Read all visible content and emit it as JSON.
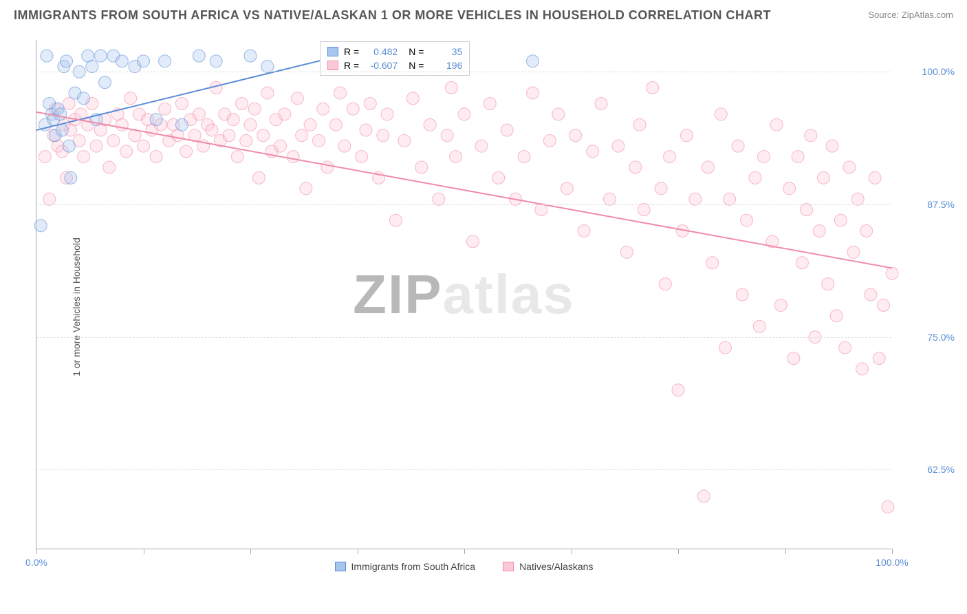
{
  "title": "IMMIGRANTS FROM SOUTH AFRICA VS NATIVE/ALASKAN 1 OR MORE VEHICLES IN HOUSEHOLD CORRELATION CHART",
  "source": "Source: ZipAtlas.com",
  "y_axis_label": "1 or more Vehicles in Household",
  "watermark": {
    "part1": "ZIP",
    "part2": "atlas"
  },
  "chart": {
    "type": "scatter",
    "xlim": [
      0,
      100
    ],
    "ylim": [
      55,
      103
    ],
    "y_ticks": [
      62.5,
      75.0,
      87.5,
      100.0
    ],
    "y_tick_labels": [
      "62.5%",
      "75.0%",
      "87.5%",
      "100.0%"
    ],
    "x_ticks": [
      0,
      12.5,
      25,
      37.5,
      50,
      62.5,
      75,
      87.5,
      100
    ],
    "x_tick_labels": {
      "0": "0.0%",
      "100": "100.0%"
    },
    "grid_color": "#dddddd",
    "axis_color": "#aaaaaa",
    "background_color": "#ffffff",
    "marker_radius": 9,
    "marker_opacity": 0.35,
    "line_width": 2,
    "series": [
      {
        "name": "Immigrants from South Africa",
        "color": "#5b8dd6",
        "fill": "#a8c5ed",
        "R": "0.482",
        "N": "35",
        "trend": {
          "x1": 0,
          "y1": 94.5,
          "x2": 38,
          "y2": 102.0
        },
        "points": [
          [
            0.5,
            85.5
          ],
          [
            1.0,
            95.0
          ],
          [
            1.2,
            101.5
          ],
          [
            1.5,
            97.0
          ],
          [
            1.8,
            96.0
          ],
          [
            2.0,
            95.5
          ],
          [
            2.2,
            94.0
          ],
          [
            2.5,
            96.5
          ],
          [
            2.8,
            96.0
          ],
          [
            3.0,
            94.5
          ],
          [
            3.2,
            100.5
          ],
          [
            3.5,
            101.0
          ],
          [
            3.8,
            93.0
          ],
          [
            4.0,
            90.0
          ],
          [
            4.5,
            98.0
          ],
          [
            5.0,
            100.0
          ],
          [
            5.5,
            97.5
          ],
          [
            6.0,
            101.5
          ],
          [
            6.5,
            100.5
          ],
          [
            7.0,
            95.5
          ],
          [
            7.5,
            101.5
          ],
          [
            8.0,
            99.0
          ],
          [
            9.0,
            101.5
          ],
          [
            10.0,
            101.0
          ],
          [
            11.5,
            100.5
          ],
          [
            12.5,
            101.0
          ],
          [
            14.0,
            95.5
          ],
          [
            15.0,
            101.0
          ],
          [
            17.0,
            95.0
          ],
          [
            19.0,
            101.5
          ],
          [
            21.0,
            101.0
          ],
          [
            25.0,
            101.5
          ],
          [
            27.0,
            100.5
          ],
          [
            37.0,
            101.5
          ],
          [
            58.0,
            101.0
          ]
        ]
      },
      {
        "name": "Natives/Alaskans",
        "color": "#f08ca8",
        "fill": "#fbc9d6",
        "R": "-0.607",
        "N": "196",
        "trend": {
          "x1": 0,
          "y1": 96.2,
          "x2": 100,
          "y2": 81.5
        },
        "points": [
          [
            1.0,
            92.0
          ],
          [
            1.5,
            88.0
          ],
          [
            2.0,
            94.0
          ],
          [
            2.2,
            96.5
          ],
          [
            2.5,
            93.0
          ],
          [
            3.0,
            92.5
          ],
          [
            3.2,
            95.0
          ],
          [
            3.5,
            90.0
          ],
          [
            3.8,
            97.0
          ],
          [
            4.0,
            94.5
          ],
          [
            4.5,
            95.5
          ],
          [
            5.0,
            93.5
          ],
          [
            5.2,
            96.0
          ],
          [
            5.5,
            92.0
          ],
          [
            6.0,
            95.0
          ],
          [
            6.5,
            97.0
          ],
          [
            7.0,
            93.0
          ],
          [
            7.5,
            94.5
          ],
          [
            8.0,
            95.5
          ],
          [
            8.5,
            91.0
          ],
          [
            9.0,
            93.5
          ],
          [
            9.5,
            96.0
          ],
          [
            10.0,
            95.0
          ],
          [
            10.5,
            92.5
          ],
          [
            11.0,
            97.5
          ],
          [
            11.5,
            94.0
          ],
          [
            12.0,
            96.0
          ],
          [
            12.5,
            93.0
          ],
          [
            13.0,
            95.5
          ],
          [
            13.5,
            94.5
          ],
          [
            14.0,
            92.0
          ],
          [
            14.5,
            95.0
          ],
          [
            15.0,
            96.5
          ],
          [
            15.5,
            93.5
          ],
          [
            16.0,
            95.0
          ],
          [
            16.5,
            94.0
          ],
          [
            17.0,
            97.0
          ],
          [
            17.5,
            92.5
          ],
          [
            18.0,
            95.5
          ],
          [
            18.5,
            94.0
          ],
          [
            19.0,
            96.0
          ],
          [
            19.5,
            93.0
          ],
          [
            20.0,
            95.0
          ],
          [
            20.5,
            94.5
          ],
          [
            21.0,
            98.5
          ],
          [
            21.5,
            93.5
          ],
          [
            22.0,
            96.0
          ],
          [
            22.5,
            94.0
          ],
          [
            23.0,
            95.5
          ],
          [
            23.5,
            92.0
          ],
          [
            24.0,
            97.0
          ],
          [
            24.5,
            93.5
          ],
          [
            25.0,
            95.0
          ],
          [
            25.5,
            96.5
          ],
          [
            26.0,
            90.0
          ],
          [
            26.5,
            94.0
          ],
          [
            27.0,
            98.0
          ],
          [
            27.5,
            92.5
          ],
          [
            28.0,
            95.5
          ],
          [
            28.5,
            93.0
          ],
          [
            29.0,
            96.0
          ],
          [
            30.0,
            92.0
          ],
          [
            30.5,
            97.5
          ],
          [
            31.0,
            94.0
          ],
          [
            31.5,
            89.0
          ],
          [
            32.0,
            95.0
          ],
          [
            33.0,
            93.5
          ],
          [
            33.5,
            96.5
          ],
          [
            34.0,
            91.0
          ],
          [
            35.0,
            95.0
          ],
          [
            35.5,
            98.0
          ],
          [
            36.0,
            93.0
          ],
          [
            37.0,
            96.5
          ],
          [
            38.0,
            92.0
          ],
          [
            38.5,
            94.5
          ],
          [
            39.0,
            97.0
          ],
          [
            40.0,
            90.0
          ],
          [
            40.5,
            94.0
          ],
          [
            41.0,
            96.0
          ],
          [
            42.0,
            86.0
          ],
          [
            43.0,
            93.5
          ],
          [
            44.0,
            97.5
          ],
          [
            45.0,
            91.0
          ],
          [
            46.0,
            95.0
          ],
          [
            47.0,
            88.0
          ],
          [
            48.0,
            94.0
          ],
          [
            48.5,
            98.5
          ],
          [
            49.0,
            92.0
          ],
          [
            50.0,
            96.0
          ],
          [
            51.0,
            84.0
          ],
          [
            52.0,
            93.0
          ],
          [
            53.0,
            97.0
          ],
          [
            54.0,
            90.0
          ],
          [
            55.0,
            94.5
          ],
          [
            56.0,
            88.0
          ],
          [
            57.0,
            92.0
          ],
          [
            58.0,
            98.0
          ],
          [
            59.0,
            87.0
          ],
          [
            60.0,
            93.5
          ],
          [
            61.0,
            96.0
          ],
          [
            62.0,
            89.0
          ],
          [
            63.0,
            94.0
          ],
          [
            64.0,
            85.0
          ],
          [
            65.0,
            92.5
          ],
          [
            66.0,
            97.0
          ],
          [
            67.0,
            88.0
          ],
          [
            68.0,
            93.0
          ],
          [
            69.0,
            83.0
          ],
          [
            70.0,
            91.0
          ],
          [
            70.5,
            95.0
          ],
          [
            71.0,
            87.0
          ],
          [
            72.0,
            98.5
          ],
          [
            73.0,
            89.0
          ],
          [
            73.5,
            80.0
          ],
          [
            74.0,
            92.0
          ],
          [
            75.0,
            70.0
          ],
          [
            75.5,
            85.0
          ],
          [
            76.0,
            94.0
          ],
          [
            77.0,
            88.0
          ],
          [
            78.0,
            60.0
          ],
          [
            78.5,
            91.0
          ],
          [
            79.0,
            82.0
          ],
          [
            80.0,
            96.0
          ],
          [
            80.5,
            74.0
          ],
          [
            81.0,
            88.0
          ],
          [
            82.0,
            93.0
          ],
          [
            82.5,
            79.0
          ],
          [
            83.0,
            86.0
          ],
          [
            84.0,
            90.0
          ],
          [
            84.5,
            76.0
          ],
          [
            85.0,
            92.0
          ],
          [
            86.0,
            84.0
          ],
          [
            86.5,
            95.0
          ],
          [
            87.0,
            78.0
          ],
          [
            88.0,
            89.0
          ],
          [
            88.5,
            73.0
          ],
          [
            89.0,
            92.0
          ],
          [
            89.5,
            82.0
          ],
          [
            90.0,
            87.0
          ],
          [
            90.5,
            94.0
          ],
          [
            91.0,
            75.0
          ],
          [
            91.5,
            85.0
          ],
          [
            92.0,
            90.0
          ],
          [
            92.5,
            80.0
          ],
          [
            93.0,
            93.0
          ],
          [
            93.5,
            77.0
          ],
          [
            94.0,
            86.0
          ],
          [
            94.5,
            74.0
          ],
          [
            95.0,
            91.0
          ],
          [
            95.5,
            83.0
          ],
          [
            96.0,
            88.0
          ],
          [
            96.5,
            72.0
          ],
          [
            97.0,
            85.0
          ],
          [
            97.5,
            79.0
          ],
          [
            98.0,
            90.0
          ],
          [
            98.5,
            73.0
          ],
          [
            99.0,
            78.0
          ],
          [
            99.5,
            59.0
          ],
          [
            100.0,
            81.0
          ]
        ]
      }
    ]
  },
  "legend_labels": {
    "series1": "Immigrants from South Africa",
    "series2": "Natives/Alaskans",
    "R_label": "R =",
    "N_label": "N ="
  }
}
